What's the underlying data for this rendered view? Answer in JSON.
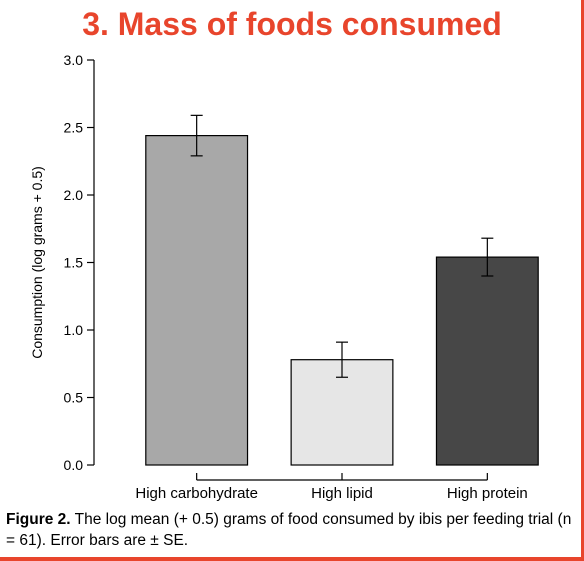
{
  "title": "3. Mass of foods consumed",
  "colors": {
    "title": "#e8452c",
    "accent_line": "#e8452c",
    "bars": [
      "#a8a8a8",
      "#e6e6e6",
      "#474747"
    ]
  },
  "caption": {
    "label": "Figure 2.",
    "text": " The log mean (+ 0.5) grams of food consumed by ibis per feeding trial (n = 61). Error bars are ± SE."
  },
  "chart_data": {
    "type": "bar",
    "title": "3. Mass of foods consumed",
    "categories": [
      "High carbohydrate",
      "High lipid",
      "High protein"
    ],
    "values": [
      2.44,
      0.78,
      1.54
    ],
    "error": [
      0.15,
      0.13,
      0.14
    ],
    "xlabel": "",
    "ylabel": "Consumption (log grams + 0.5)",
    "ylim": [
      0,
      3.0
    ],
    "yticks": [
      "0.0",
      "0.5",
      "1.0",
      "1.5",
      "2.0",
      "2.5",
      "3.0"
    ],
    "grid": false,
    "legend": "none"
  }
}
